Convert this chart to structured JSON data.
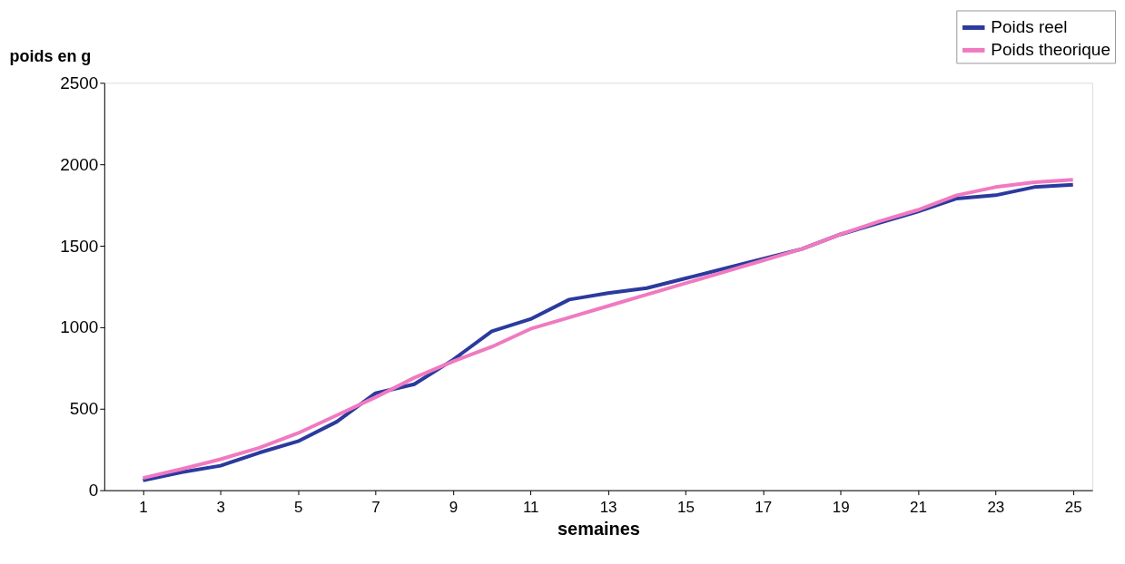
{
  "chart_data": {
    "type": "line",
    "ylabel": "poids en  g",
    "xlabel": "semaines",
    "x": [
      1,
      2,
      3,
      4,
      5,
      6,
      7,
      8,
      9,
      10,
      11,
      12,
      13,
      14,
      15,
      16,
      17,
      18,
      19,
      20,
      21,
      22,
      23,
      24,
      25
    ],
    "series": [
      {
        "name": "Poids reel",
        "color": "#2b3a9e",
        "values": [
          60,
          110,
          150,
          230,
          300,
          420,
          595,
          650,
          800,
          975,
          1050,
          1170,
          1210,
          1240,
          1300,
          1360,
          1420,
          1480,
          1570,
          1640,
          1710,
          1790,
          1810,
          1860,
          1875
        ]
      },
      {
        "name": "Poids theorique",
        "color": "#f07ac0",
        "values": [
          75,
          130,
          190,
          260,
          350,
          460,
          570,
          690,
          790,
          880,
          990,
          1060,
          1130,
          1200,
          1270,
          1340,
          1410,
          1480,
          1570,
          1650,
          1720,
          1810,
          1860,
          1890,
          1905
        ]
      }
    ],
    "xlim": [
      0,
      25.5
    ],
    "xticks": [
      1,
      3,
      5,
      7,
      9,
      11,
      13,
      15,
      17,
      19,
      21,
      23,
      25
    ],
    "ylim": [
      0,
      2500
    ],
    "yticks": [
      0,
      500,
      1000,
      1500,
      2000,
      2500
    ],
    "grid": false,
    "legend": "top right",
    "marker": "none",
    "line_style": "solid"
  }
}
